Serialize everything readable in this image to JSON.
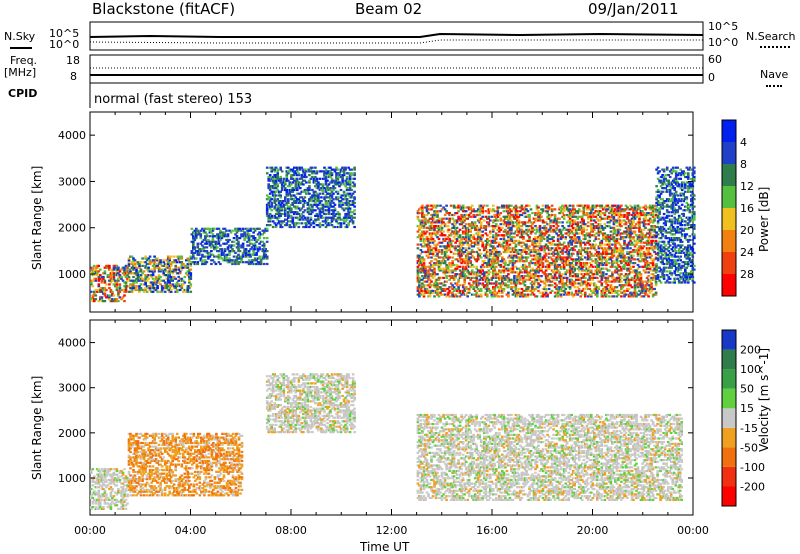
{
  "header": {
    "station": "Blackstone (fitACF)",
    "beam": "Beam 02",
    "date": "09/Jan/2011"
  },
  "top_panel": {
    "nsky_label": "N.Sky",
    "nsky_ticks": [
      "10^5",
      "10^0"
    ],
    "nsky_right_ticks": [
      "10^5",
      "10^0"
    ],
    "nsearch_label": "N.Search",
    "freq_label": "Freq.",
    "freq_unit": "[MHz]",
    "freq_ticks": [
      "18",
      "8"
    ],
    "nave_label": "Nave",
    "nave_ticks": [
      "60",
      "0"
    ],
    "cpid_label": "CPID",
    "cpid_text": "normal (fast stereo) 153"
  },
  "chart_data": [
    {
      "type": "heatmap",
      "title": "",
      "parameter": "Power",
      "ylabel": "Slant Range [km]",
      "xlabel": "",
      "ylim": [
        180,
        4500
      ],
      "yticks": [
        1000,
        2000,
        3000,
        4000
      ],
      "colorbar": {
        "label": "Power [dB]",
        "ticks": [
          "4",
          "8",
          "12",
          "16",
          "20",
          "24",
          "28"
        ],
        "colors": [
          "#0020f0",
          "#2040c8",
          "#2e7d4a",
          "#55c040",
          "#f0c020",
          "#f08010",
          "#f04010",
          "#ff0000"
        ]
      },
      "regions": [
        {
          "t_start": 0.0,
          "t_end": 1.5,
          "r_low": 400,
          "r_high": 1200,
          "level": "high"
        },
        {
          "t_start": 1.5,
          "t_end": 4.0,
          "r_low": 600,
          "r_high": 1400,
          "level": "medium"
        },
        {
          "t_start": 4.0,
          "t_end": 7.0,
          "r_low": 1200,
          "r_high": 2000,
          "level": "low"
        },
        {
          "t_start": 7.0,
          "t_end": 10.5,
          "r_low": 2000,
          "r_high": 3300,
          "level": "low"
        },
        {
          "t_start": 13.0,
          "t_end": 22.5,
          "r_low": 500,
          "r_high": 2500,
          "level": "high"
        },
        {
          "t_start": 22.5,
          "t_end": 24.0,
          "r_low": 800,
          "r_high": 3300,
          "level": "low"
        }
      ]
    },
    {
      "type": "heatmap",
      "title": "",
      "parameter": "Velocity",
      "ylabel": "Slant Range [km]",
      "xlabel": "Time UT",
      "ylim": [
        180,
        4500
      ],
      "yticks": [
        1000,
        2000,
        3000,
        4000
      ],
      "xticks": [
        "00:00",
        "04:00",
        "08:00",
        "12:00",
        "16:00",
        "20:00",
        "00:00"
      ],
      "colorbar": {
        "label": "Velocity [m s^-1]",
        "ticks": [
          "200",
          "100",
          "50",
          "15",
          "-15",
          "-50",
          "-100",
          "-200"
        ],
        "colors": [
          "#1838c8",
          "#2e7d4a",
          "#3aa048",
          "#60d040",
          "#c8c8c8",
          "#f0a020",
          "#f07010",
          "#f03010",
          "#ff0000"
        ]
      },
      "regions": [
        {
          "t_start": 0.0,
          "t_end": 1.5,
          "r_low": 300,
          "r_high": 1200,
          "level": "gray"
        },
        {
          "t_start": 1.5,
          "t_end": 6.0,
          "r_low": 600,
          "r_high": 2000,
          "level": "orange"
        },
        {
          "t_start": 7.0,
          "t_end": 10.5,
          "r_low": 2000,
          "r_high": 3300,
          "level": "gray"
        },
        {
          "t_start": 13.0,
          "t_end": 23.5,
          "r_low": 500,
          "r_high": 2400,
          "level": "gray"
        }
      ]
    }
  ]
}
